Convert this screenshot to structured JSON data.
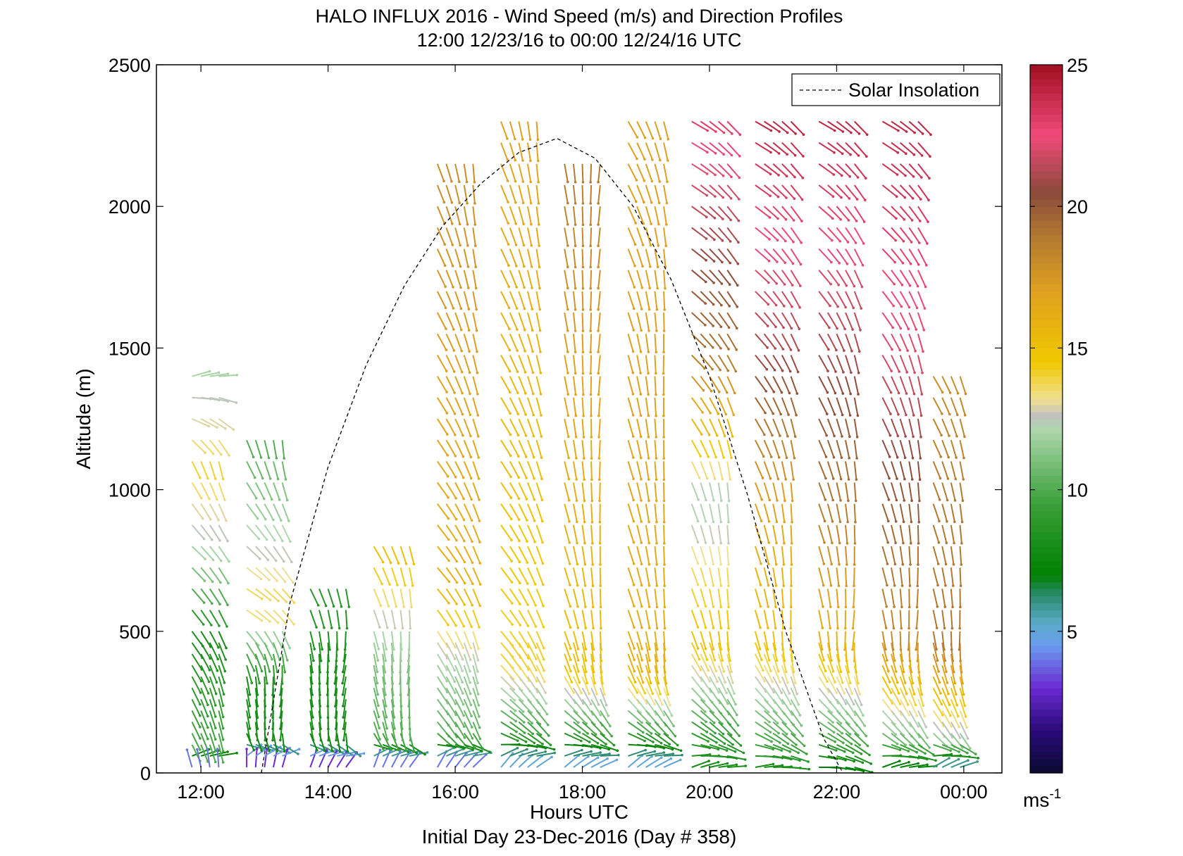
{
  "chart_data": {
    "type": "quiver",
    "title": "HALO INFLUX 2016 - Wind Speed (m/s) and Direction Profiles",
    "subtitle": "12:00 12/23/16 to 00:00 12/24/16  UTC",
    "xlabel": "Hours UTC",
    "xlabel2": "Initial Day 23-Dec-2016 (Day # 358)",
    "ylabel": "Altitude (m)",
    "xlim_hours": [
      11.3,
      24.6
    ],
    "ylim": [
      0,
      2500
    ],
    "x_ticks": [
      {
        "value": 12,
        "label": "12:00"
      },
      {
        "value": 14,
        "label": "14:00"
      },
      {
        "value": 16,
        "label": "16:00"
      },
      {
        "value": 18,
        "label": "18:00"
      },
      {
        "value": 20,
        "label": "20:00"
      },
      {
        "value": 22,
        "label": "22:00"
      },
      {
        "value": 24,
        "label": "00:00"
      }
    ],
    "y_ticks": [
      {
        "value": 0,
        "label": "0"
      },
      {
        "value": 500,
        "label": "500"
      },
      {
        "value": 1000,
        "label": "1000"
      },
      {
        "value": 1500,
        "label": "1500"
      },
      {
        "value": 2000,
        "label": "2000"
      },
      {
        "value": 2500,
        "label": "2500"
      }
    ],
    "colorbar": {
      "min": 0,
      "max": 25,
      "unit_label": "ms-1",
      "ticks": [
        {
          "value": 5,
          "label": "5"
        },
        {
          "value": 10,
          "label": "10"
        },
        {
          "value": 15,
          "label": "15"
        },
        {
          "value": 20,
          "label": "20"
        },
        {
          "value": 25,
          "label": "25"
        }
      ],
      "stops": [
        {
          "v": 0,
          "c": "#0a0a30"
        },
        {
          "v": 1.5,
          "c": "#2a0a7a"
        },
        {
          "v": 3,
          "c": "#6a2ad0"
        },
        {
          "v": 4.5,
          "c": "#6a9aee"
        },
        {
          "v": 5.3,
          "c": "#5aaac8"
        },
        {
          "v": 6.3,
          "c": "#2a8a6a"
        },
        {
          "v": 7,
          "c": "#008000"
        },
        {
          "v": 9.5,
          "c": "#3aa03a"
        },
        {
          "v": 12.2,
          "c": "#b0d8b0"
        },
        {
          "v": 12.6,
          "c": "#c0c0c0"
        },
        {
          "v": 13.2,
          "c": "#f0e090"
        },
        {
          "v": 14.5,
          "c": "#f0c800"
        },
        {
          "v": 17,
          "c": "#e0a020"
        },
        {
          "v": 19,
          "c": "#b07830"
        },
        {
          "v": 20.5,
          "c": "#8a4a3a"
        },
        {
          "v": 22.5,
          "c": "#f04a7a"
        },
        {
          "v": 25,
          "c": "#a01020"
        }
      ]
    },
    "legend": {
      "label": "Solar Insolation",
      "style": "dashed",
      "color": "#000000",
      "position": "top-right"
    },
    "solar_insolation": {
      "x_hours": [
        12.95,
        13.4,
        14.0,
        14.6,
        15.2,
        15.8,
        16.4,
        17.0,
        17.6,
        18.2,
        18.8,
        19.4,
        20.0,
        20.6,
        21.2,
        21.8,
        22.1
      ],
      "y": [
        0,
        600,
        1080,
        1440,
        1720,
        1930,
        2080,
        2190,
        2240,
        2170,
        2000,
        1740,
        1400,
        980,
        500,
        120,
        0
      ]
    },
    "wind_barb_profiles": [
      {
        "x_hours": 12.0,
        "levels": [
          {
            "z": 20,
            "speed": 4,
            "dir_deg": 160
          },
          {
            "z": 100,
            "speed": 10,
            "dir_deg": 330
          },
          {
            "z": 300,
            "speed": 9,
            "dir_deg": 330
          },
          {
            "z": 500,
            "speed": 8,
            "dir_deg": 320
          },
          {
            "z": 800,
            "speed": 12,
            "dir_deg": 310
          },
          {
            "z": 1100,
            "speed": 14,
            "dir_deg": 330
          },
          {
            "z": 1400,
            "speed": 12,
            "dir_deg": 250
          }
        ]
      },
      {
        "x_hours": 13.0,
        "levels": [
          {
            "z": 20,
            "speed": 3,
            "dir_deg": 180
          },
          {
            "z": 150,
            "speed": 8,
            "dir_deg": 350
          },
          {
            "z": 350,
            "speed": 8,
            "dir_deg": 350
          },
          {
            "z": 600,
            "speed": 14,
            "dir_deg": 300
          },
          {
            "z": 1200,
            "speed": 10,
            "dir_deg": 340
          }
        ]
      },
      {
        "x_hours": 14.0,
        "levels": [
          {
            "z": 20,
            "speed": 3,
            "dir_deg": 200
          },
          {
            "z": 150,
            "speed": 8,
            "dir_deg": 350
          },
          {
            "z": 400,
            "speed": 8,
            "dir_deg": 355
          },
          {
            "z": 700,
            "speed": 9,
            "dir_deg": 330
          }
        ]
      },
      {
        "x_hours": 15.0,
        "levels": [
          {
            "z": 20,
            "speed": 4,
            "dir_deg": 200
          },
          {
            "z": 150,
            "speed": 10,
            "dir_deg": 340
          },
          {
            "z": 400,
            "speed": 11,
            "dir_deg": 350
          },
          {
            "z": 800,
            "speed": 15,
            "dir_deg": 330
          }
        ]
      },
      {
        "x_hours": 16.0,
        "levels": [
          {
            "z": 20,
            "speed": 4,
            "dir_deg": 210
          },
          {
            "z": 150,
            "speed": 10,
            "dir_deg": 320
          },
          {
            "z": 400,
            "speed": 12,
            "dir_deg": 330
          },
          {
            "z": 700,
            "speed": 16,
            "dir_deg": 320
          },
          {
            "z": 2200,
            "speed": 18,
            "dir_deg": 340
          }
        ]
      },
      {
        "x_hours": 17.0,
        "levels": [
          {
            "z": 20,
            "speed": 5,
            "dir_deg": 220
          },
          {
            "z": 150,
            "speed": 9,
            "dir_deg": 300
          },
          {
            "z": 400,
            "speed": 14,
            "dir_deg": 320
          },
          {
            "z": 2300,
            "speed": 17,
            "dir_deg": 340
          }
        ]
      },
      {
        "x_hours": 18.0,
        "levels": [
          {
            "z": 20,
            "speed": 5,
            "dir_deg": 230
          },
          {
            "z": 150,
            "speed": 9,
            "dir_deg": 300
          },
          {
            "z": 400,
            "speed": 15,
            "dir_deg": 340
          },
          {
            "z": 1500,
            "speed": 17,
            "dir_deg": 350
          },
          {
            "z": 2200,
            "speed": 19,
            "dir_deg": 350
          }
        ]
      },
      {
        "x_hours": 19.0,
        "levels": [
          {
            "z": 20,
            "speed": 5,
            "dir_deg": 230
          },
          {
            "z": 150,
            "speed": 9,
            "dir_deg": 300
          },
          {
            "z": 400,
            "speed": 16,
            "dir_deg": 340
          },
          {
            "z": 1500,
            "speed": 17,
            "dir_deg": 345
          },
          {
            "z": 2300,
            "speed": 17,
            "dir_deg": 330
          }
        ]
      },
      {
        "x_hours": 20.0,
        "levels": [
          {
            "z": 20,
            "speed": 8,
            "dir_deg": 250
          },
          {
            "z": 150,
            "speed": 9,
            "dir_deg": 300
          },
          {
            "z": 500,
            "speed": 15,
            "dir_deg": 340
          },
          {
            "z": 1000,
            "speed": 12,
            "dir_deg": 340
          },
          {
            "z": 1500,
            "speed": 19,
            "dir_deg": 315
          },
          {
            "z": 2300,
            "speed": 23,
            "dir_deg": 300
          }
        ]
      },
      {
        "x_hours": 21.0,
        "levels": [
          {
            "z": 20,
            "speed": 8,
            "dir_deg": 260
          },
          {
            "z": 150,
            "speed": 10,
            "dir_deg": 300
          },
          {
            "z": 500,
            "speed": 15,
            "dir_deg": 345
          },
          {
            "z": 1000,
            "speed": 17,
            "dir_deg": 340
          },
          {
            "z": 1500,
            "speed": 21,
            "dir_deg": 320
          },
          {
            "z": 2300,
            "speed": 24,
            "dir_deg": 300
          }
        ]
      },
      {
        "x_hours": 22.0,
        "levels": [
          {
            "z": 20,
            "speed": 7,
            "dir_deg": 270
          },
          {
            "z": 150,
            "speed": 10,
            "dir_deg": 300
          },
          {
            "z": 500,
            "speed": 16,
            "dir_deg": 350
          },
          {
            "z": 1000,
            "speed": 19,
            "dir_deg": 340
          },
          {
            "z": 1500,
            "speed": 21,
            "dir_deg": 330
          },
          {
            "z": 2300,
            "speed": 24,
            "dir_deg": 300
          }
        ]
      },
      {
        "x_hours": 23.0,
        "levels": [
          {
            "z": 20,
            "speed": 7,
            "dir_deg": 250
          },
          {
            "z": 150,
            "speed": 11,
            "dir_deg": 310
          },
          {
            "z": 500,
            "speed": 18,
            "dir_deg": 350
          },
          {
            "z": 1000,
            "speed": 20,
            "dir_deg": 340
          },
          {
            "z": 1500,
            "speed": 22,
            "dir_deg": 330
          },
          {
            "z": 2300,
            "speed": 24,
            "dir_deg": 300
          }
        ]
      },
      {
        "x_hours": 23.8,
        "levels": [
          {
            "z": 20,
            "speed": 6,
            "dir_deg": 240
          },
          {
            "z": 150,
            "speed": 12,
            "dir_deg": 320
          },
          {
            "z": 500,
            "speed": 19,
            "dir_deg": 350
          },
          {
            "z": 1000,
            "speed": 19,
            "dir_deg": 340
          },
          {
            "z": 1400,
            "speed": 18,
            "dir_deg": 330
          }
        ]
      }
    ]
  }
}
